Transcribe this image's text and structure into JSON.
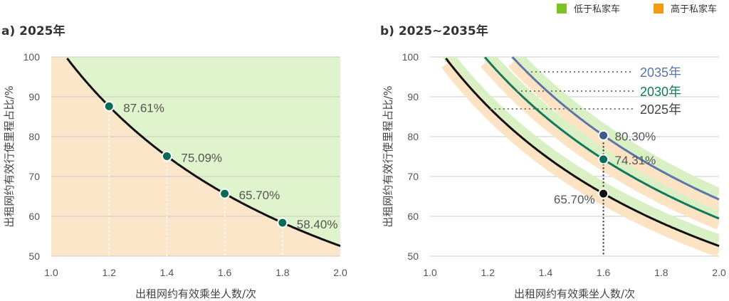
{
  "legend": {
    "items": [
      {
        "label": "低于私家车",
        "color": "#7ec224"
      },
      {
        "label": "高于私家车",
        "color": "#f39c12"
      }
    ]
  },
  "chart_data": [
    {
      "type": "area",
      "title": "a) 2025年",
      "xlabel": "出租网约有效乘坐人数/次",
      "ylabel": "出租网约有效行使里程占比/%",
      "xlim": [
        1.0,
        2.0
      ],
      "ylim": [
        50,
        100
      ],
      "xticks": [
        "1.0",
        "1.2",
        "1.4",
        "1.6",
        "1.8",
        "2.0"
      ],
      "yticks": [
        "50",
        "60",
        "70",
        "80",
        "90",
        "100"
      ],
      "grid": true,
      "regions": {
        "above": "低于私家车",
        "below": "高于私家车"
      },
      "curve": {
        "name": "2025年",
        "k": 105.12,
        "color": "#111111"
      },
      "points": [
        {
          "x": 1.2,
          "y": 87.61,
          "label": "87.61%"
        },
        {
          "x": 1.4,
          "y": 75.09,
          "label": "75.09%"
        },
        {
          "x": 1.6,
          "y": 65.7,
          "label": "65.70%"
        },
        {
          "x": 1.8,
          "y": 58.4,
          "label": "58.40%"
        }
      ]
    },
    {
      "type": "line",
      "title": "b) 2025~2035年",
      "xlabel": "出租网约有效乘坐人数/次",
      "ylabel": "出租网约有效行使里程占比/%",
      "xlim": [
        1.0,
        2.0
      ],
      "ylim": [
        50,
        100
      ],
      "xticks": [
        "1.0",
        "1.2",
        "1.4",
        "1.6",
        "1.8",
        "2.0"
      ],
      "yticks": [
        "50",
        "60",
        "70",
        "80",
        "90",
        "100"
      ],
      "grid": true,
      "series": [
        {
          "name": "2025年",
          "k": 105.12,
          "color": "#111111",
          "point": {
            "x": 1.6,
            "y": 65.7,
            "label": "65.70%"
          }
        },
        {
          "name": "2030年",
          "k": 118.9,
          "color": "#0f7a5c",
          "point": {
            "x": 1.6,
            "y": 74.31,
            "label": "74.31%"
          }
        },
        {
          "name": "2035年",
          "k": 128.48,
          "color": "#5a76a8",
          "point": {
            "x": 1.6,
            "y": 80.3,
            "label": "80.30%"
          }
        }
      ]
    }
  ]
}
